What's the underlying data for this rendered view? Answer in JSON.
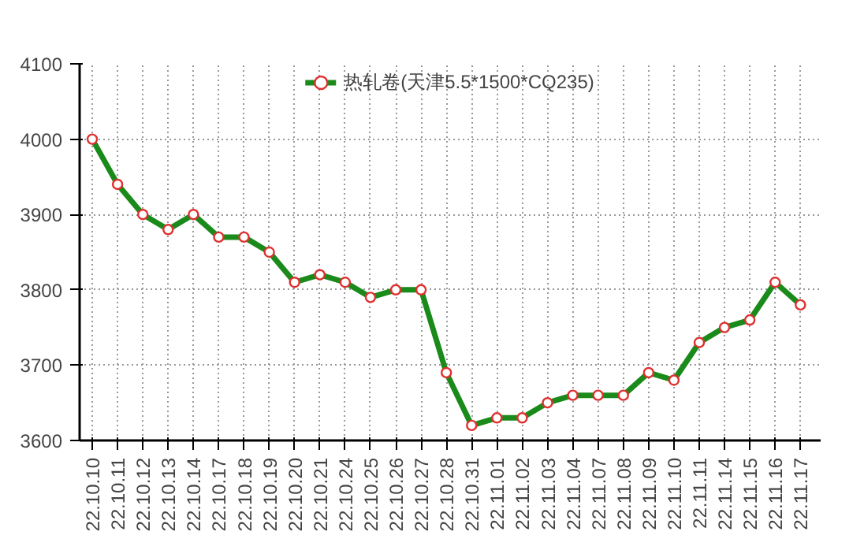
{
  "chart_data": {
    "type": "line",
    "categories": [
      "22.10.10",
      "22.10.11",
      "22.10.12",
      "22.10.13",
      "22.10.14",
      "22.10.17",
      "22.10.18",
      "22.10.19",
      "22.10.20",
      "22.10.21",
      "22.10.24",
      "22.10.25",
      "22.10.26",
      "22.10.27",
      "22.10.28",
      "22.10.31",
      "22.11.01",
      "22.11.02",
      "22.11.03",
      "22.11.04",
      "22.11.07",
      "22.11.08",
      "22.11.09",
      "22.11.10",
      "22.11.11",
      "22.11.14",
      "22.11.15",
      "22.11.16",
      "22.11.17"
    ],
    "series": [
      {
        "name": "热轧卷(天津5.5*1500*CQ235)",
        "color": "#1a8a1a",
        "values": [
          4000,
          3940,
          3900,
          3880,
          3900,
          3870,
          3870,
          3850,
          3810,
          3820,
          3810,
          3790,
          3800,
          3800,
          3690,
          3620,
          3630,
          3630,
          3650,
          3660,
          3660,
          3660,
          3690,
          3680,
          3730,
          3750,
          3760,
          3810,
          3780
        ]
      }
    ],
    "ylim": [
      3600,
      4100
    ],
    "yticks": [
      3600,
      3700,
      3800,
      3900,
      4000,
      4100
    ],
    "grid": true,
    "legend": "top",
    "marker": "circle",
    "line_style": "solid"
  }
}
